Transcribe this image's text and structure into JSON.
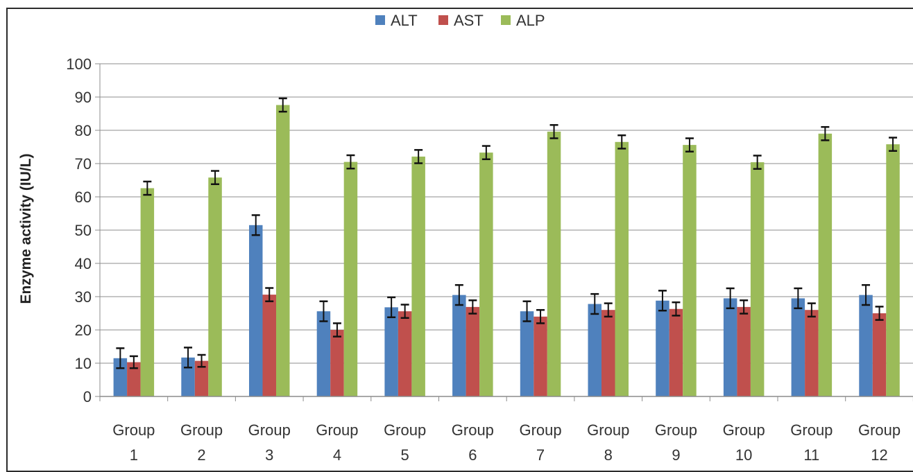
{
  "chart_data": {
    "type": "bar",
    "categories": [
      [
        "Group",
        "1"
      ],
      [
        "Group",
        "2"
      ],
      [
        "Group",
        "3"
      ],
      [
        "Group",
        "4"
      ],
      [
        "Group",
        "5"
      ],
      [
        "Group",
        "6"
      ],
      [
        "Group",
        "7"
      ],
      [
        "Group",
        "8"
      ],
      [
        "Group",
        "9"
      ],
      [
        "Group",
        "10"
      ],
      [
        "Group",
        "11"
      ],
      [
        "Group",
        "12"
      ]
    ],
    "series": [
      {
        "name": "ALT",
        "color": "#4f81bd",
        "values": [
          11.5,
          11.7,
          51.5,
          25.6,
          26.8,
          30.5,
          25.6,
          27.8,
          28.8,
          29.5,
          29.5,
          30.5
        ],
        "errors": [
          3.0,
          3.0,
          3.0,
          3.0,
          3.0,
          3.0,
          3.0,
          3.0,
          3.0,
          3.0,
          3.0,
          3.0
        ]
      },
      {
        "name": "AST",
        "color": "#c0504d",
        "values": [
          10.3,
          10.7,
          30.6,
          20.0,
          25.6,
          26.9,
          24.0,
          26.0,
          26.3,
          26.9,
          26.0,
          25.0
        ],
        "errors": [
          1.8,
          1.8,
          2.0,
          2.0,
          2.0,
          2.0,
          2.0,
          2.0,
          2.0,
          2.0,
          2.0,
          2.0
        ]
      },
      {
        "name": "ALP",
        "color": "#9bbb59",
        "values": [
          62.6,
          65.8,
          87.6,
          70.5,
          72.1,
          73.3,
          79.6,
          76.5,
          75.6,
          70.4,
          79.0,
          75.8
        ],
        "errors": [
          2.0,
          2.0,
          2.0,
          2.0,
          2.0,
          2.0,
          2.0,
          2.0,
          2.0,
          2.0,
          2.0,
          2.0
        ]
      }
    ],
    "ylabel": "Enzyme activity (IU/L)",
    "xlabel": "",
    "ylim": [
      0,
      100
    ],
    "yticks": [
      "0",
      "10",
      "20",
      "30",
      "40",
      "50",
      "60",
      "70",
      "80",
      "90",
      "100"
    ],
    "grid": true,
    "legend": "top-center"
  }
}
